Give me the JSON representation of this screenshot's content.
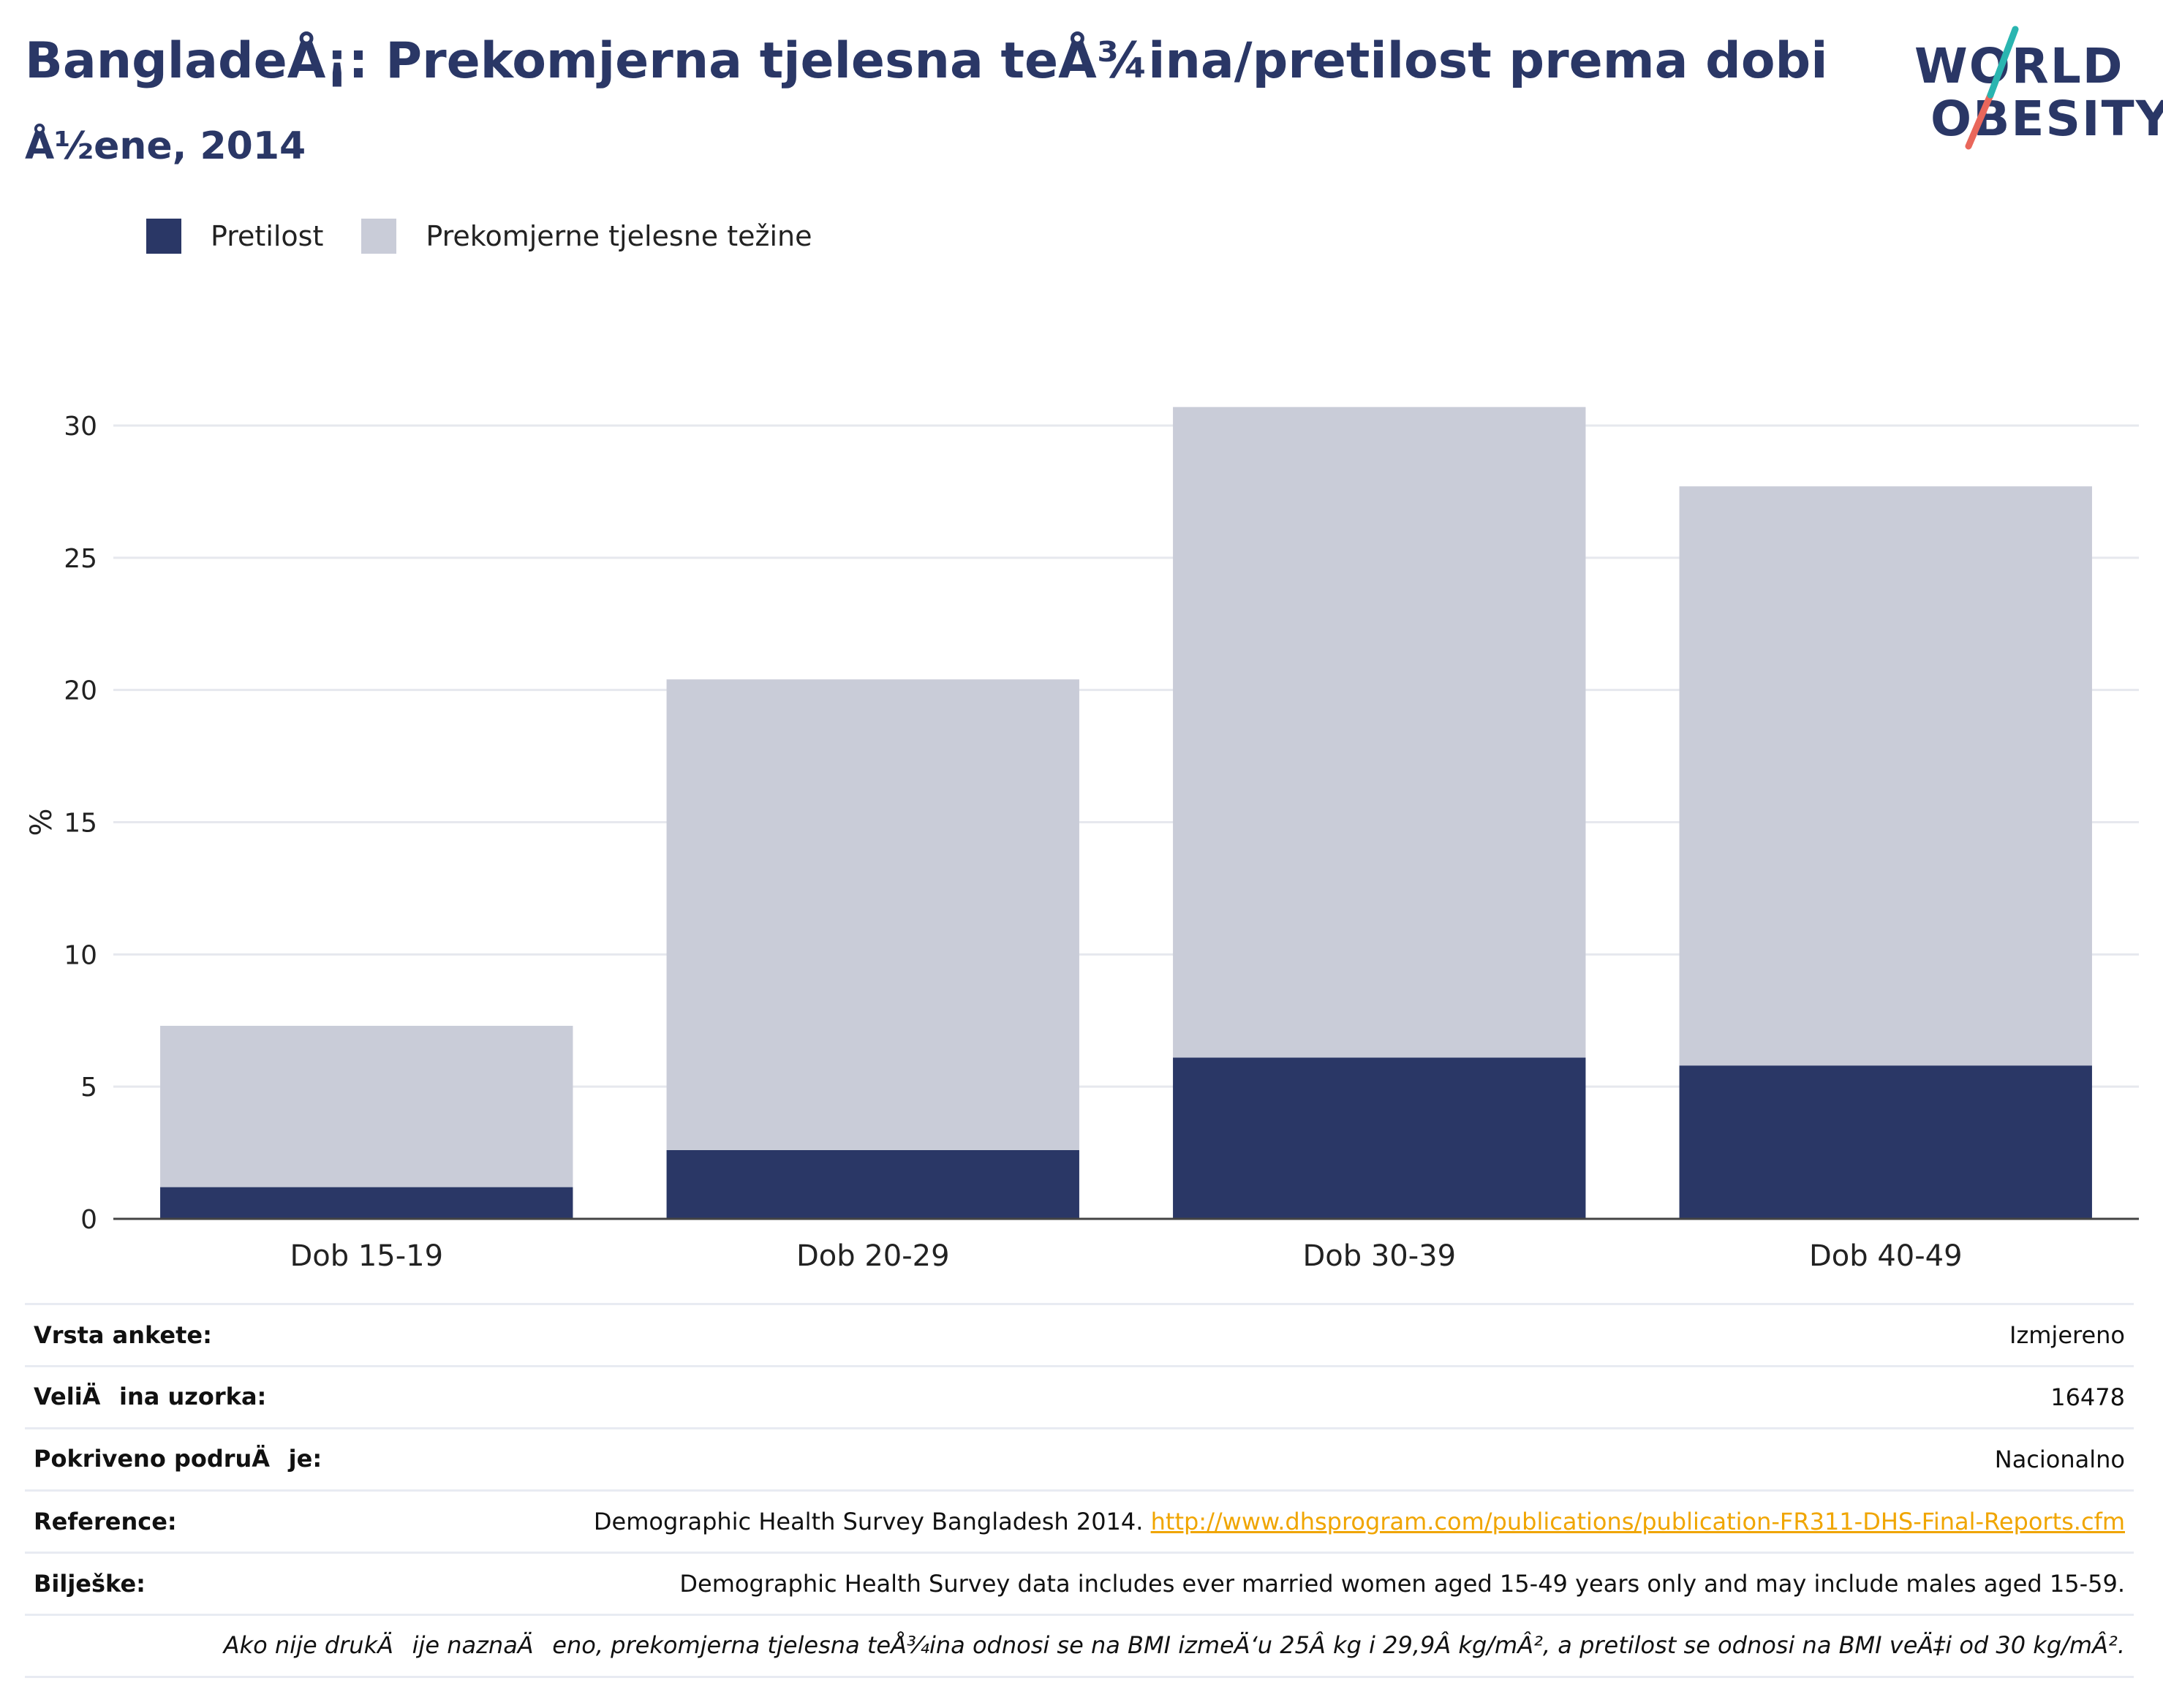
{
  "header": {
    "title": "BangladeÅ¡: Prekomjerna tjelesna teÅ¾ina/pretilost prema dobi",
    "subtitle": "Å½ene, 2014"
  },
  "logo": {
    "line1": "WORLD",
    "line2": "OBESITY",
    "accent_colors": [
      "#2ab5b0",
      "#e9675b"
    ]
  },
  "legend": [
    {
      "label": "Pretilost",
      "color": "#2a3766"
    },
    {
      "label": "Prekomjerne tjelesne težine",
      "color": "#c9ccd8"
    }
  ],
  "chart_data": {
    "type": "bar",
    "stacked": true,
    "categories": [
      "Dob 15-19",
      "Dob 20-29",
      "Dob 30-39",
      "Dob 40-49"
    ],
    "series": [
      {
        "name": "Pretilost",
        "color": "#2a3766",
        "values": [
          1.2,
          2.6,
          6.1,
          5.8
        ]
      },
      {
        "name": "Prekomjerne tjelesne težine",
        "color": "#c9ccd8",
        "values": [
          6.1,
          17.8,
          24.6,
          21.9
        ]
      }
    ],
    "ylabel": "%",
    "ylim": [
      0,
      30
    ],
    "yticks": [
      0,
      5,
      10,
      15,
      20,
      25,
      30
    ],
    "grid": true,
    "legend_position": "top-left"
  },
  "info_table": {
    "rows": [
      {
        "key": "Vrsta ankete:",
        "value": "Izmjereno"
      },
      {
        "key": "VeliÄina uzorka:",
        "value": "16478"
      },
      {
        "key": "Pokriveno podruÄje:",
        "value": "Nacionalno"
      },
      {
        "key": "Reference:",
        "value": "Demographic Health Survey Bangladesh 2014.",
        "link": "http://www.dhsprogram.com/publications/publication-FR311-DHS-Final-Reports.cfm"
      },
      {
        "key": "Bilješke:",
        "value": "Demographic Health Survey data includes ever married women aged 15-49 years only and may include males aged 15-59."
      }
    ],
    "note": "Ako nije drukÄije naznaÄeno, prekomjerna tjelesna teÅ¾ina odnosi se na BMI izmeÄ‘u 25Â kg i 29,9Â kg/mÂ², a pretilost se odnosi na BMI veÄ‡i od 30 kg/mÂ²."
  }
}
